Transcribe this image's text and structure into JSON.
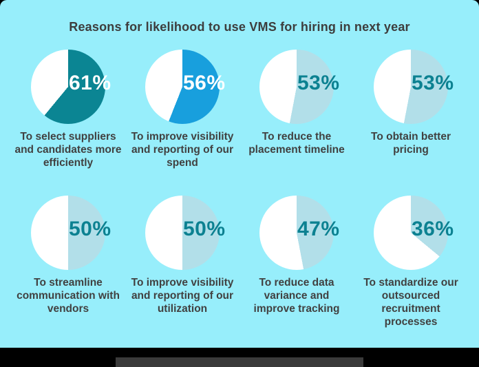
{
  "page": {
    "colors": {
      "panel_background": "#97eefb",
      "outer_background": "#000000",
      "title_text": "#3d3d3d",
      "label_text": "#414141",
      "footer_bar": "#3a3a3a",
      "pie_remainder": "#ffffff"
    }
  },
  "header": {
    "title": "Reasons for likelihood to use VMS for hiring in next year"
  },
  "chart_data": {
    "type": "pie",
    "title": "Reasons for likelihood to use VMS for hiring in next year",
    "unit": "%",
    "layout": {
      "rows": 2,
      "cols": 4,
      "start_angle_deg": 0,
      "direction": "clockwise"
    },
    "remainder_color": "#ffffff",
    "items": [
      {
        "label": "To select suppliers and candidates more efficiently",
        "value": 61,
        "pct_label": "61%",
        "color": "#0b8593",
        "pct_color": "#ffffff"
      },
      {
        "label": "To improve visibility and reporting of our spend",
        "value": 56,
        "pct_label": "56%",
        "color": "#189fdd",
        "pct_color": "#ffffff"
      },
      {
        "label": "To reduce the placement timeline",
        "value": 53,
        "pct_label": "53%",
        "color": "#b2dfe9",
        "pct_color": "#0c8191"
      },
      {
        "label": "To obtain better pricing",
        "value": 53,
        "pct_label": "53%",
        "color": "#b2dfe9",
        "pct_color": "#0c8191"
      },
      {
        "label": "To streamline communication with vendors",
        "value": 50,
        "pct_label": "50%",
        "color": "#b2dfe9",
        "pct_color": "#0c8191"
      },
      {
        "label": "To improve visibility and reporting of our utilization",
        "value": 50,
        "pct_label": "50%",
        "color": "#b2dfe9",
        "pct_color": "#0c8191"
      },
      {
        "label": "To reduce data variance and improve tracking",
        "value": 47,
        "pct_label": "47%",
        "color": "#b2dfe9",
        "pct_color": "#0c8191"
      },
      {
        "label": "To standardize our outsourced recruitment processes",
        "value": 36,
        "pct_label": "36%",
        "color": "#b2dfe9",
        "pct_color": "#0c8191"
      }
    ]
  }
}
